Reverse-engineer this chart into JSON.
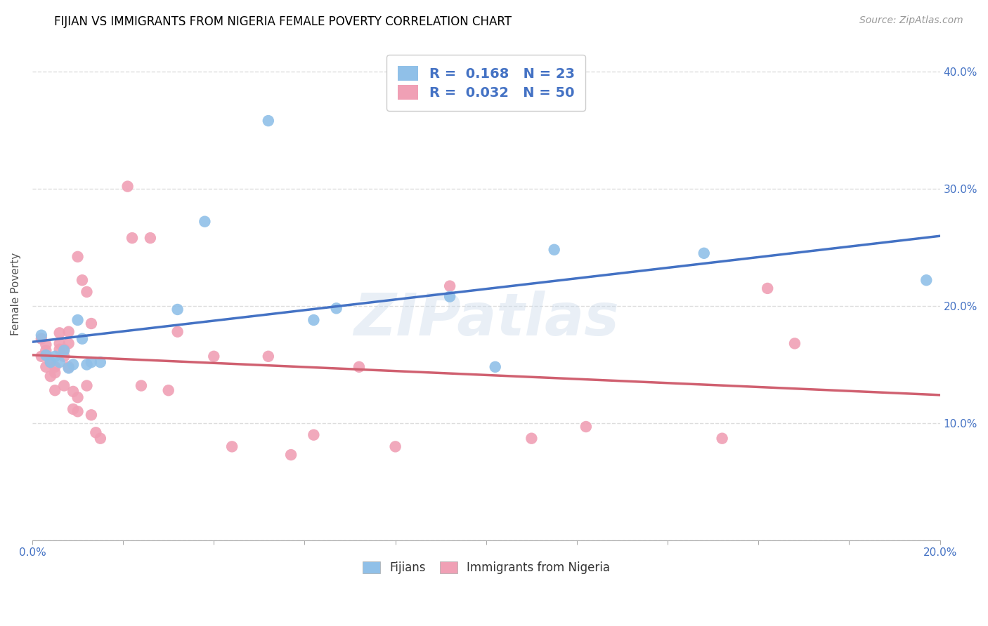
{
  "title": "FIJIAN VS IMMIGRANTS FROM NIGERIA FEMALE POVERTY CORRELATION CHART",
  "source": "Source: ZipAtlas.com",
  "ylabel": "Female Poverty",
  "legend_label_fijian": "Fijians",
  "legend_label_nigeria": "Immigrants from Nigeria",
  "xlim": [
    0.0,
    0.2
  ],
  "ylim": [
    0.0,
    0.42
  ],
  "xticks": [
    0.0,
    0.02,
    0.04,
    0.06,
    0.08,
    0.1,
    0.12,
    0.14,
    0.16,
    0.18,
    0.2
  ],
  "yticks": [
    0.0,
    0.1,
    0.2,
    0.3,
    0.4
  ],
  "right_ytick_labels": [
    "",
    "10.0%",
    "20.0%",
    "30.0%",
    "40.0%"
  ],
  "xtick_labels_show": [
    "0.0%",
    "",
    "",
    "",
    "",
    "",
    "",
    "",
    "",
    "",
    "20.0%"
  ],
  "R_fijian": 0.168,
  "N_fijian": 23,
  "R_nigeria": 0.032,
  "N_nigeria": 50,
  "color_fijian": "#90C0E8",
  "color_nigeria": "#F0A0B5",
  "line_color_fijian": "#4472C4",
  "line_color_nigeria": "#D06070",
  "background_color": "#FFFFFF",
  "grid_color": "#DDDDDD",
  "watermark": "ZIPatlas",
  "fijian_x": [
    0.002,
    0.003,
    0.004,
    0.005,
    0.006,
    0.007,
    0.008,
    0.009,
    0.01,
    0.011,
    0.012,
    0.013,
    0.015,
    0.032,
    0.038,
    0.052,
    0.062,
    0.067,
    0.092,
    0.102,
    0.115,
    0.148,
    0.197
  ],
  "fijian_y": [
    0.175,
    0.158,
    0.152,
    0.157,
    0.152,
    0.162,
    0.147,
    0.15,
    0.188,
    0.172,
    0.15,
    0.152,
    0.152,
    0.197,
    0.272,
    0.358,
    0.188,
    0.198,
    0.208,
    0.148,
    0.248,
    0.245,
    0.222
  ],
  "nigeria_x": [
    0.002,
    0.002,
    0.003,
    0.003,
    0.003,
    0.004,
    0.004,
    0.005,
    0.005,
    0.005,
    0.006,
    0.006,
    0.006,
    0.007,
    0.007,
    0.007,
    0.008,
    0.008,
    0.008,
    0.009,
    0.009,
    0.01,
    0.01,
    0.01,
    0.011,
    0.012,
    0.012,
    0.013,
    0.013,
    0.014,
    0.015,
    0.021,
    0.022,
    0.024,
    0.026,
    0.03,
    0.032,
    0.04,
    0.044,
    0.052,
    0.057,
    0.062,
    0.072,
    0.08,
    0.092,
    0.11,
    0.122,
    0.152,
    0.162,
    0.168
  ],
  "nigeria_y": [
    0.172,
    0.157,
    0.167,
    0.162,
    0.148,
    0.152,
    0.14,
    0.148,
    0.143,
    0.128,
    0.177,
    0.168,
    0.163,
    0.157,
    0.163,
    0.132,
    0.178,
    0.168,
    0.148,
    0.112,
    0.127,
    0.122,
    0.11,
    0.242,
    0.222,
    0.212,
    0.132,
    0.185,
    0.107,
    0.092,
    0.087,
    0.302,
    0.258,
    0.132,
    0.258,
    0.128,
    0.178,
    0.157,
    0.08,
    0.157,
    0.073,
    0.09,
    0.148,
    0.08,
    0.217,
    0.087,
    0.097,
    0.087,
    0.215,
    0.168
  ]
}
